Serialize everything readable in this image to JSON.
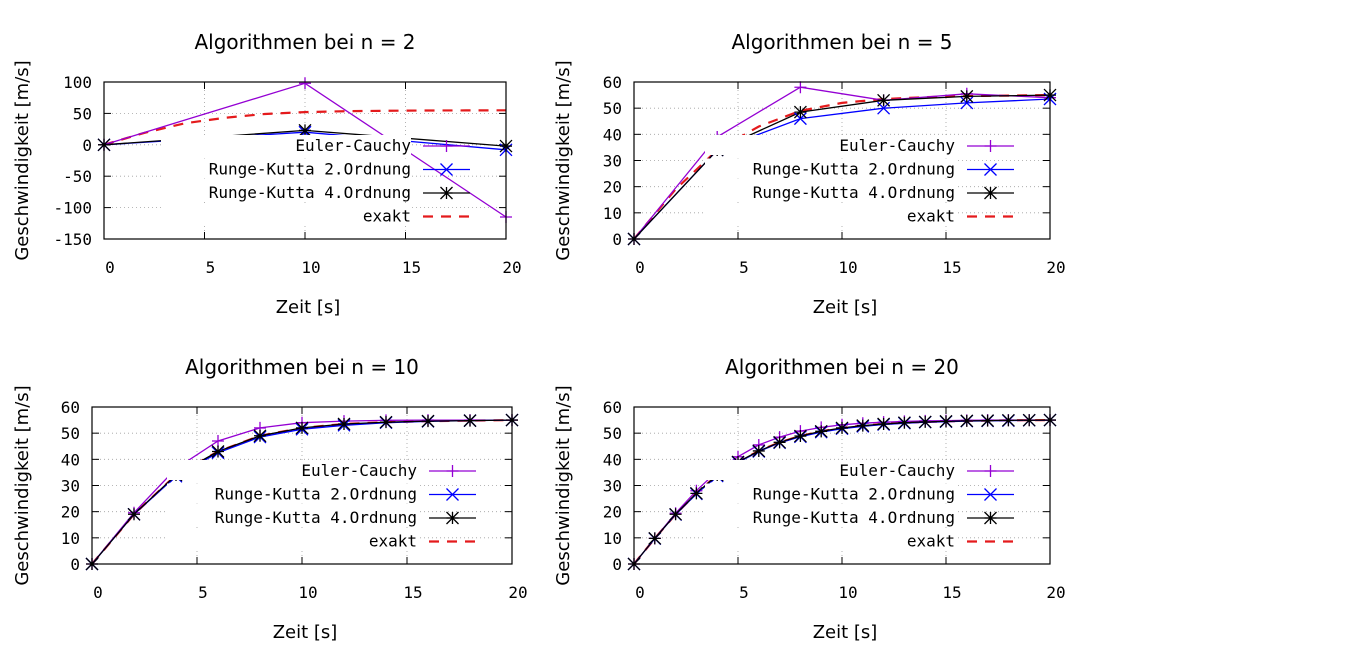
{
  "chart_data": [
    {
      "type": "line",
      "title": "Algorithmen bei n = 2",
      "xlabel": "Zeit [s]",
      "ylabel": "Geschwindigkeit [m/s]",
      "xlim": [
        0,
        20
      ],
      "ylim": [
        -150,
        100
      ],
      "xticks": [
        0,
        5,
        10,
        15,
        20
      ],
      "yticks": [
        -150,
        -100,
        -50,
        0,
        50,
        100
      ],
      "grid": true,
      "legend_position": "right",
      "series": [
        {
          "name": "Euler-Cauchy",
          "color": "#9400d3",
          "marker": "plus",
          "dash": "",
          "x": [
            0,
            10,
            20
          ],
          "y": [
            0,
            98,
            -115
          ]
        },
        {
          "name": "Runge-Kutta 2.Ordnung",
          "color": "#0000ff",
          "marker": "x",
          "dash": "",
          "x": [
            0,
            10,
            20
          ],
          "y": [
            0,
            20,
            -8
          ]
        },
        {
          "name": "Runge-Kutta 4.Ordnung",
          "color": "#000000",
          "marker": "star",
          "dash": "",
          "x": [
            0,
            10,
            20
          ],
          "y": [
            0,
            23,
            -2
          ]
        },
        {
          "name": "exakt",
          "color": "#e41a1c",
          "marker": "none",
          "dash": "10,8",
          "x": [
            0,
            2,
            4,
            6,
            8,
            10,
            12,
            14,
            16,
            18,
            20
          ],
          "y": [
            0,
            19,
            34,
            43,
            49,
            52,
            53.5,
            54.2,
            54.6,
            54.8,
            55
          ]
        }
      ]
    },
    {
      "type": "line",
      "title": "Algorithmen bei n = 5",
      "xlabel": "Zeit [s]",
      "ylabel": "Geschwindigkeit [m/s]",
      "xlim": [
        0,
        20
      ],
      "ylim": [
        0,
        60
      ],
      "xticks": [
        0,
        5,
        10,
        15,
        20
      ],
      "yticks": [
        0,
        10,
        20,
        30,
        40,
        50,
        60
      ],
      "grid": true,
      "legend_position": "right",
      "series": [
        {
          "name": "Euler-Cauchy",
          "color": "#9400d3",
          "marker": "plus",
          "dash": "",
          "x": [
            0,
            4,
            8,
            12,
            16,
            20
          ],
          "y": [
            0,
            39,
            58,
            53,
            55.5,
            54
          ]
        },
        {
          "name": "Runge-Kutta 2.Ordnung",
          "color": "#0000ff",
          "marker": "x",
          "dash": "",
          "x": [
            0,
            4,
            8,
            12,
            16,
            20
          ],
          "y": [
            0,
            34,
            46,
            50,
            52,
            53.5
          ]
        },
        {
          "name": "Runge-Kutta 4.Ordnung",
          "color": "#000000",
          "marker": "star",
          "dash": "",
          "x": [
            0,
            4,
            8,
            12,
            16,
            20
          ],
          "y": [
            0,
            34,
            48.5,
            53,
            54.5,
            55
          ]
        },
        {
          "name": "exakt",
          "color": "#e41a1c",
          "marker": "none",
          "dash": "10,8",
          "x": [
            0,
            2,
            4,
            6,
            8,
            10,
            12,
            14,
            16,
            18,
            20
          ],
          "y": [
            0,
            19,
            34,
            43,
            49,
            52,
            53.5,
            54.2,
            54.6,
            54.8,
            55
          ]
        }
      ]
    },
    {
      "type": "line",
      "title": "Algorithmen bei n = 10",
      "xlabel": "Zeit [s]",
      "ylabel": "Geschwindigkeit [m/s]",
      "xlim": [
        0,
        20
      ],
      "ylim": [
        0,
        60
      ],
      "xticks": [
        0,
        5,
        10,
        15,
        20
      ],
      "yticks": [
        0,
        10,
        20,
        30,
        40,
        50,
        60
      ],
      "grid": true,
      "legend_position": "right",
      "series": [
        {
          "name": "Euler-Cauchy",
          "color": "#9400d3",
          "marker": "plus",
          "dash": "",
          "x": [
            0,
            2,
            4,
            6,
            8,
            10,
            12,
            14,
            16,
            18,
            20
          ],
          "y": [
            0,
            19.6,
            36.5,
            47,
            52,
            54,
            54.6,
            54.9,
            55,
            55,
            55
          ]
        },
        {
          "name": "Runge-Kutta 2.Ordnung",
          "color": "#0000ff",
          "marker": "x",
          "dash": "",
          "x": [
            0,
            2,
            4,
            6,
            8,
            10,
            12,
            14,
            16,
            18,
            20
          ],
          "y": [
            0,
            19,
            33.5,
            42.5,
            48.5,
            51.5,
            53,
            54,
            54.5,
            54.8,
            55
          ]
        },
        {
          "name": "Runge-Kutta 4.Ordnung",
          "color": "#000000",
          "marker": "star",
          "dash": "",
          "x": [
            0,
            2,
            4,
            6,
            8,
            10,
            12,
            14,
            16,
            18,
            20
          ],
          "y": [
            0,
            19,
            34,
            43,
            49,
            52,
            53.5,
            54.2,
            54.6,
            54.8,
            55
          ]
        },
        {
          "name": "exakt",
          "color": "#e41a1c",
          "marker": "none",
          "dash": "10,8",
          "x": [
            0,
            2,
            4,
            6,
            8,
            10,
            12,
            14,
            16,
            18,
            20
          ],
          "y": [
            0,
            19,
            34,
            43,
            49,
            52,
            53.5,
            54.2,
            54.6,
            54.8,
            55
          ]
        }
      ]
    },
    {
      "type": "line",
      "title": "Algorithmen bei n = 20",
      "xlabel": "Zeit [s]",
      "ylabel": "Geschwindigkeit [m/s]",
      "xlim": [
        0,
        20
      ],
      "ylim": [
        0,
        60
      ],
      "xticks": [
        0,
        5,
        10,
        15,
        20
      ],
      "yticks": [
        0,
        10,
        20,
        30,
        40,
        50,
        60
      ],
      "grid": true,
      "legend_position": "right",
      "series": [
        {
          "name": "Euler-Cauchy",
          "color": "#9400d3",
          "marker": "plus",
          "dash": "",
          "x": [
            0,
            1,
            2,
            3,
            4,
            5,
            6,
            7,
            8,
            9,
            10,
            11,
            12,
            13,
            14,
            15,
            16,
            17,
            18,
            19,
            20
          ],
          "y": [
            0,
            9.8,
            19.4,
            28,
            35.5,
            41,
            45.5,
            48.5,
            50.8,
            52.2,
            53.2,
            53.8,
            54.2,
            54.5,
            54.7,
            54.8,
            54.9,
            55,
            55,
            55,
            55
          ]
        },
        {
          "name": "Runge-Kutta 2.Ordnung",
          "color": "#0000ff",
          "marker": "x",
          "dash": "",
          "x": [
            0,
            1,
            2,
            3,
            4,
            5,
            6,
            7,
            8,
            9,
            10,
            11,
            12,
            13,
            14,
            15,
            16,
            17,
            18,
            19,
            20
          ],
          "y": [
            0,
            9.7,
            18.9,
            26.8,
            33.6,
            38.8,
            43,
            46.3,
            48.6,
            50.4,
            51.7,
            52.6,
            53.3,
            53.8,
            54.2,
            54.4,
            54.6,
            54.7,
            54.8,
            54.9,
            55
          ]
        },
        {
          "name": "Runge-Kutta 4.Ordnung",
          "color": "#000000",
          "marker": "star",
          "dash": "",
          "x": [
            0,
            1,
            2,
            3,
            4,
            5,
            6,
            7,
            8,
            9,
            10,
            11,
            12,
            13,
            14,
            15,
            16,
            17,
            18,
            19,
            20
          ],
          "y": [
            0,
            9.8,
            19,
            27,
            34,
            39,
            43.2,
            46.5,
            48.9,
            50.7,
            52,
            52.9,
            53.5,
            54,
            54.3,
            54.5,
            54.7,
            54.8,
            54.9,
            54.95,
            55
          ]
        },
        {
          "name": "exakt",
          "color": "#e41a1c",
          "marker": "none",
          "dash": "10,8",
          "x": [
            0,
            1,
            2,
            3,
            4,
            5,
            6,
            7,
            8,
            9,
            10,
            11,
            12,
            13,
            14,
            15,
            16,
            17,
            18,
            19,
            20
          ],
          "y": [
            0,
            9.8,
            19,
            27,
            34,
            39,
            43.2,
            46.5,
            48.9,
            50.7,
            52,
            52.9,
            53.5,
            54,
            54.3,
            54.5,
            54.7,
            54.8,
            54.9,
            54.95,
            55
          ]
        }
      ]
    }
  ]
}
